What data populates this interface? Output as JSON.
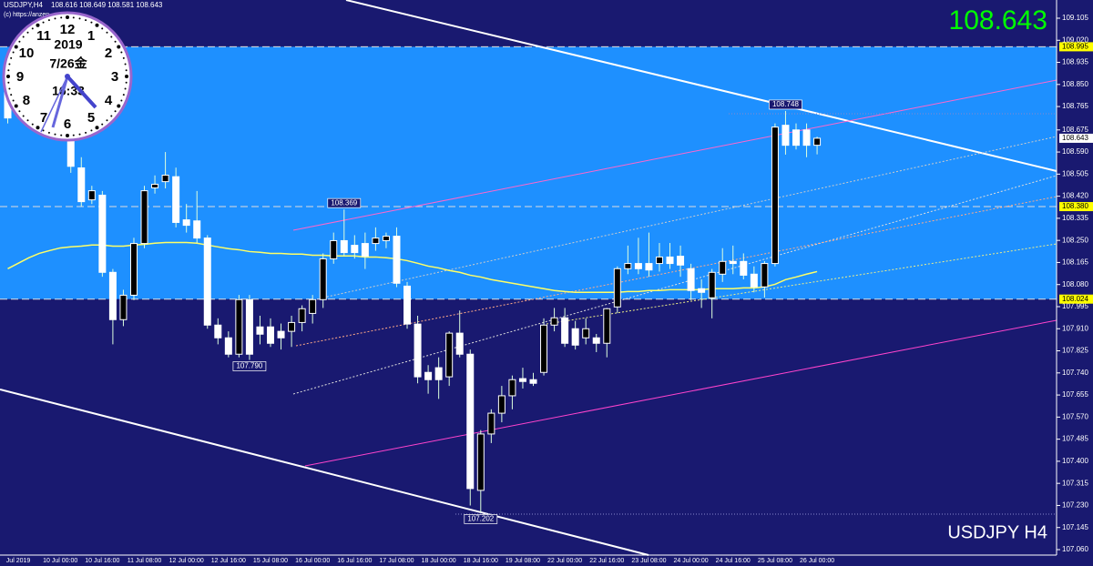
{
  "chart_data": {
    "type": "candlestick",
    "title": "USDJPY,H4",
    "ohlc_text": "108.616 108.649 108.581 108.643",
    "subtitle": "(c) https://anzen",
    "watermark": "USDJPY H4",
    "current_price": 108.643,
    "background": "#191970",
    "zone_color": "#1e90ff",
    "level_color": "#ffff00",
    "up_color": "#000000",
    "down_color": "#ffffff",
    "ylim": [
      107.039,
      109.175
    ],
    "yticks": [
      109.105,
      {
        "value": 109.02,
        "label": "109.020"
      },
      108.935,
      {
        "value": 108.85,
        "label": "108.850"
      },
      108.765,
      108.675,
      {
        "value": 108.59,
        "label": "108.590"
      },
      108.505,
      {
        "value": 108.42,
        "label": "108.420"
      },
      108.335,
      {
        "value": 108.25,
        "label": "108.250"
      },
      108.165,
      {
        "value": 108.08,
        "label": "108.080"
      },
      107.995,
      {
        "value": 107.91,
        "label": "107.910"
      },
      107.825,
      {
        "value": 107.74,
        "label": "107.740"
      },
      107.655,
      {
        "value": 107.57,
        "label": "107.570"
      },
      107.485,
      {
        "value": 107.4,
        "label": "107.400"
      },
      107.315,
      {
        "value": 107.23,
        "label": "107.230"
      },
      107.145,
      {
        "value": 107.06,
        "label": "107.060"
      }
    ],
    "levels": [
      108.995,
      {
        "value": 108.38,
        "label": "108.380"
      },
      108.024
    ],
    "annotations": [
      108.748,
      108.369,
      {
        "value": 107.79,
        "label": "107.790"
      },
      107.202
    ],
    "categories": [
      null,
      "Jul 2019",
      null,
      null,
      null,
      "10 Jul 00:00",
      null,
      null,
      null,
      "10 Jul 16:00",
      null,
      null,
      null,
      "11 Jul 08:00",
      null,
      null,
      null,
      "12 Jul 00:00",
      null,
      null,
      null,
      "12 Jul 16:00",
      null,
      null,
      null,
      "15 Jul 08:00",
      null,
      null,
      null,
      "16 Jul 00:00",
      null,
      null,
      null,
      "16 Jul 16:00",
      null,
      null,
      null,
      "17 Jul 08:00",
      null,
      null,
      null,
      "18 Jul 00:00",
      null,
      null,
      null,
      "18 Jul 16:00",
      null,
      null,
      null,
      "19 Jul 08:00",
      null,
      null,
      null,
      "22 Jul 00:00",
      null,
      null,
      null,
      "22 Jul 16:00",
      null,
      null,
      null,
      "23 Jul 08:00",
      null,
      null,
      null,
      "24 Jul 00:00",
      null,
      null,
      null,
      "24 Jul 16:00",
      null,
      null,
      null,
      "25 Jul 08:00",
      null,
      null,
      null,
      "26 Jul 00:00"
    ],
    "open": [
      108.825,
      null,
      null,
      null,
      null,
      null,
      108.651,
      108.529,
      108.406,
      108.424,
      108.127,
      107.945,
      108.039,
      108.238,
      108.452,
      108.476,
      108.495,
      108.329,
      108.325,
      108.259,
      107.924,
      107.875,
      107.812,
      108.022,
      107.917,
      107.917,
      107.9,
      107.9,
      107.934,
      107.969,
      108.022,
      108.179,
      108.249,
      108.231,
      108.238,
      108.238,
      108.249,
      108.266,
      108.074,
      107.928,
      107.742,
      107.76,
      107.725,
      107.893,
      107.812,
      107.288,
      107.505,
      107.585,
      107.652,
      107.718,
      107.714,
      107.742,
      107.924,
      107.952,
      107.91,
      107.875,
      107.875,
      107.854,
      107.994,
      108.141,
      108.161,
      108.161,
      108.161,
      108.186,
      108.189,
      108.141,
      108.064,
      108.029,
      108.12,
      108.169,
      108.169,
      108.12,
      108.071,
      108.161,
      108.693,
      108.675,
      108.675,
      108.616
    ],
    "high": [
      108.85,
      null,
      null,
      null,
      null,
      null,
      108.67,
      108.57,
      108.46,
      108.44,
      108.14,
      108.06,
      108.26,
      108.46,
      108.5,
      108.59,
      108.53,
      108.39,
      108.44,
      108.27,
      107.95,
      107.9,
      108.04,
      108.04,
      107.96,
      107.95,
      107.93,
      107.96,
      108.0,
      108.04,
      108.2,
      108.28,
      108.369,
      108.27,
      108.28,
      108.3,
      108.28,
      108.3,
      108.09,
      107.96,
      107.77,
      107.8,
      107.9,
      107.98,
      107.83,
      107.52,
      107.6,
      107.69,
      107.73,
      107.76,
      107.74,
      107.95,
      107.99,
      107.99,
      107.94,
      107.95,
      107.89,
      107.99,
      108.15,
      108.23,
      108.26,
      108.28,
      108.24,
      108.24,
      108.23,
      108.16,
      108.1,
      108.14,
      108.22,
      108.23,
      108.2,
      108.15,
      108.17,
      108.7,
      108.748,
      108.7,
      108.7,
      108.649
    ],
    "low": [
      108.7,
      null,
      null,
      null,
      null,
      null,
      108.51,
      108.38,
      108.39,
      108.11,
      107.85,
      107.92,
      108.02,
      108.22,
      108.43,
      108.45,
      108.3,
      108.28,
      108.24,
      107.91,
      107.85,
      107.8,
      107.8,
      107.79,
      107.85,
      107.84,
      107.83,
      107.84,
      107.9,
      107.93,
      107.99,
      108.16,
      108.19,
      108.18,
      108.14,
      108.21,
      108.22,
      108.07,
      107.91,
      107.7,
      107.66,
      107.64,
      107.69,
      107.8,
      107.23,
      107.202,
      107.47,
      107.55,
      107.6,
      107.68,
      107.69,
      107.73,
      107.9,
      107.84,
      107.83,
      107.85,
      107.82,
      107.8,
      107.97,
      108.12,
      108.12,
      108.11,
      108.13,
      108.14,
      108.11,
      108.02,
      107.99,
      107.95,
      108.09,
      108.12,
      108.1,
      108.05,
      108.03,
      108.15,
      108.58,
      108.6,
      108.57,
      108.581
    ],
    "close": [
      108.721,
      null,
      null,
      null,
      null,
      null,
      108.535,
      108.399,
      108.441,
      108.127,
      107.945,
      108.039,
      108.238,
      108.441,
      108.466,
      108.501,
      108.319,
      108.308,
      108.259,
      107.924,
      107.875,
      107.812,
      108.022,
      107.812,
      107.889,
      107.854,
      107.875,
      107.934,
      107.987,
      108.022,
      108.179,
      108.249,
      108.203,
      108.203,
      108.189,
      108.259,
      108.266,
      108.085,
      107.928,
      107.725,
      107.714,
      107.714,
      107.893,
      107.812,
      107.295,
      107.505,
      107.585,
      107.652,
      107.714,
      107.707,
      107.7,
      107.924,
      107.952,
      107.854,
      107.847,
      107.91,
      107.854,
      107.987,
      108.141,
      108.161,
      108.141,
      108.136,
      108.186,
      108.161,
      108.155,
      108.057,
      108.05,
      108.127,
      108.169,
      108.161,
      108.116,
      108.071,
      108.161,
      108.686,
      108.616,
      108.616,
      108.616,
      108.643
    ],
    "lines": [
      {
        "color": "#ffff66",
        "values": [
          108.141,
          108.162,
          108.183,
          108.2,
          108.211,
          108.221,
          108.225,
          108.228,
          108.232,
          108.232,
          108.228,
          108.228,
          108.232,
          108.235,
          108.239,
          108.242,
          108.242,
          108.242,
          108.239,
          108.232,
          108.225,
          108.218,
          108.214,
          108.207,
          108.204,
          108.2,
          108.2,
          108.197,
          108.197,
          108.193,
          108.193,
          108.19,
          108.19,
          108.19,
          108.186,
          108.186,
          108.183,
          108.179,
          108.172,
          108.162,
          108.151,
          108.144,
          108.134,
          108.127,
          108.116,
          108.109,
          108.099,
          108.092,
          108.085,
          108.078,
          108.071,
          108.064,
          108.057,
          108.053,
          108.05,
          108.05,
          108.05,
          108.05,
          108.05,
          108.053,
          108.053,
          108.057,
          108.057,
          108.06,
          108.06,
          108.06,
          108.06,
          108.064,
          108.064,
          108.064,
          108.067,
          108.067,
          108.071,
          108.081,
          108.099,
          108.109,
          108.12,
          108.13
        ]
      }
    ]
  },
  "clock": {
    "numbers": [
      12,
      1,
      2,
      3,
      4,
      5,
      6,
      7,
      8,
      9,
      10,
      11
    ],
    "year": "2019",
    "date": "7/26金",
    "time": "16:33"
  }
}
